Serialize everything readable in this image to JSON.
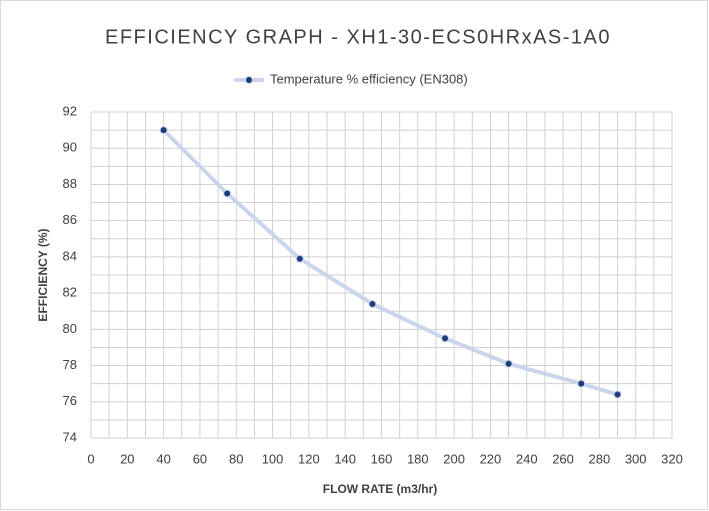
{
  "chart_data": {
    "type": "line",
    "title": "EFFICIENCY  GRAPH - XH1-30-ECS0HRxAS-1A0",
    "x_label": "FLOW RATE (m3/hr)",
    "y_label": "EFFICIENCY (%)",
    "x": [
      40,
      75,
      115,
      155,
      195,
      230,
      270,
      290
    ],
    "series": [
      {
        "name": "Temperature % efficiency (EN308)",
        "color": "#c8d5ea",
        "marker_color": "#1f3d7a",
        "values": [
          91.0,
          87.5,
          83.9,
          81.4,
          79.5,
          78.1,
          77.0,
          76.4
        ]
      }
    ],
    "xlim": [
      0,
      320
    ],
    "xticks": [
      0,
      20,
      40,
      60,
      80,
      100,
      120,
      140,
      160,
      180,
      200,
      220,
      240,
      260,
      280,
      300,
      320
    ],
    "ylim": [
      74,
      92
    ],
    "yticks": [
      74,
      76,
      78,
      80,
      82,
      84,
      86,
      88,
      90,
      92
    ],
    "grid": true,
    "minor_grid": true,
    "legend": "top"
  }
}
